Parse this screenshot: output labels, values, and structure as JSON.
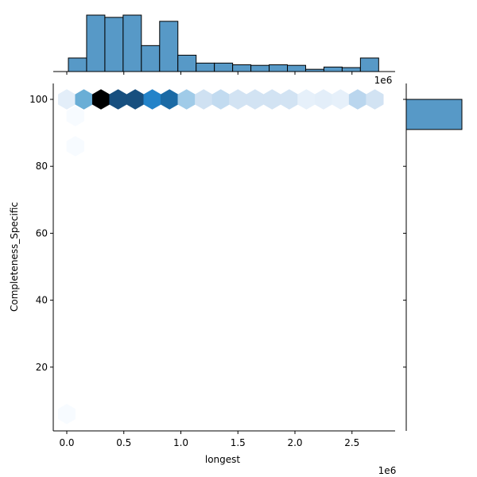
{
  "chart_data": {
    "type": "jointplot-hexbin",
    "title": "",
    "xlabel": "longest",
    "ylabel": "Completeness_Specific",
    "x_offset_label": "1e6",
    "top_offset_label": "1e6",
    "xlim": [
      -0.1,
      2.9
    ],
    "ylim": [
      2,
      105
    ],
    "x_ticks": [
      0.0,
      0.5,
      1.0,
      1.5,
      2.0,
      2.5
    ],
    "x_tick_labels": [
      "0.0",
      "0.5",
      "1.0",
      "1.5",
      "2.0",
      "2.5"
    ],
    "y_ticks": [
      20,
      40,
      60,
      80,
      100
    ],
    "y_tick_labels": [
      "20",
      "40",
      "60",
      "80",
      "100"
    ],
    "hexbins": [
      {
        "x": 0.0,
        "y": 100,
        "color": "#e3eef9"
      },
      {
        "x": 0.15,
        "y": 100,
        "color": "#6aaed6"
      },
      {
        "x": 0.3,
        "y": 100,
        "color": "#000000"
      },
      {
        "x": 0.45,
        "y": 100,
        "color": "#174f7f"
      },
      {
        "x": 0.6,
        "y": 100,
        "color": "#174f7f"
      },
      {
        "x": 0.75,
        "y": 100,
        "color": "#2383c9"
      },
      {
        "x": 0.9,
        "y": 100,
        "color": "#1b6aa5"
      },
      {
        "x": 1.05,
        "y": 100,
        "color": "#a0cbe8"
      },
      {
        "x": 1.2,
        "y": 100,
        "color": "#cfe1f2"
      },
      {
        "x": 1.35,
        "y": 100,
        "color": "#c2dbf0"
      },
      {
        "x": 1.5,
        "y": 100,
        "color": "#d2e3f3"
      },
      {
        "x": 1.65,
        "y": 100,
        "color": "#d2e3f3"
      },
      {
        "x": 1.8,
        "y": 100,
        "color": "#d2e3f3"
      },
      {
        "x": 1.95,
        "y": 100,
        "color": "#d2e3f3"
      },
      {
        "x": 2.1,
        "y": 100,
        "color": "#e6f0fa"
      },
      {
        "x": 2.25,
        "y": 100,
        "color": "#e3eef9"
      },
      {
        "x": 2.4,
        "y": 100,
        "color": "#e6f0fa"
      },
      {
        "x": 2.55,
        "y": 100,
        "color": "#bad6ee"
      },
      {
        "x": 2.7,
        "y": 100,
        "color": "#d2e3f3"
      },
      {
        "x": 0.075,
        "y": 95,
        "color": "#f7fbff"
      },
      {
        "x": 0.075,
        "y": 86,
        "color": "#f7fbff"
      },
      {
        "x": 0.0,
        "y": 6,
        "color": "#f7fbff"
      }
    ],
    "top_histogram": {
      "bin_edges_1e6": [
        0.0,
        0.16,
        0.32,
        0.48,
        0.64,
        0.8,
        0.96,
        1.12,
        1.28,
        1.44,
        1.6,
        1.76,
        1.92,
        2.08,
        2.24,
        2.4,
        2.56,
        2.72
      ],
      "relative_heights": [
        0.24,
        1.0,
        0.96,
        1.0,
        0.46,
        0.89,
        0.29,
        0.15,
        0.15,
        0.12,
        0.11,
        0.12,
        0.11,
        0.04,
        0.08,
        0.07,
        0.24
      ],
      "color": "#5799c7"
    },
    "right_histogram": {
      "bins": [
        {
          "y_from": 91,
          "y_to": 100,
          "relative_width": 1.0
        }
      ],
      "color": "#5799c7"
    },
    "bar_color": "#5799c7",
    "edge_color": "#000000"
  }
}
